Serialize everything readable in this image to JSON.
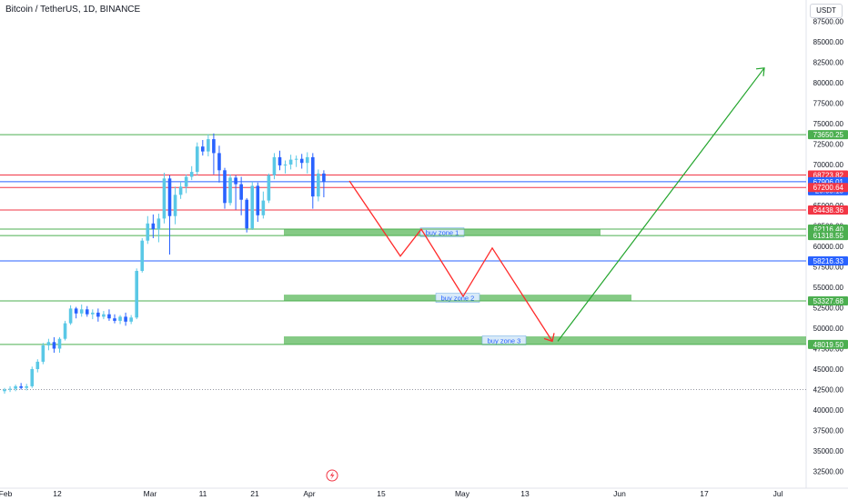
{
  "header": {
    "title": "Bitcoin / TetherUS, 1D, BINANCE"
  },
  "axis": {
    "unit": "USDT"
  },
  "chart_data": {
    "type": "candlestick",
    "symbol": "Bitcoin / TetherUS",
    "timeframe": "1D",
    "exchange": "BINANCE",
    "ylim": [
      31000,
      91000
    ],
    "y_ticks": [
      32500,
      35000,
      37500,
      40000,
      42500,
      45000,
      47500,
      50000,
      52500,
      55000,
      57500,
      60000,
      62500,
      65000,
      67500,
      70000,
      72500,
      75000,
      77500,
      80000,
      82500,
      85000,
      87500
    ],
    "x_ticks": [
      "Feb",
      "12",
      "Mar",
      "11",
      "21",
      "Apr",
      "15",
      "May",
      "13",
      "Jun",
      "17",
      "Jul"
    ],
    "candles": [
      [
        42300,
        42700,
        42000,
        42500
      ],
      [
        42500,
        42900,
        42200,
        42600
      ],
      [
        42600,
        43100,
        42300,
        42900
      ],
      [
        42900,
        43300,
        42500,
        42700
      ],
      [
        42700,
        43200,
        42400,
        42900
      ],
      [
        42900,
        45300,
        42700,
        45000
      ],
      [
        45000,
        46200,
        44600,
        45900
      ],
      [
        45900,
        48200,
        45600,
        47900
      ],
      [
        47900,
        48700,
        47300,
        48300
      ],
      [
        48300,
        48900,
        47000,
        47500
      ],
      [
        47500,
        48900,
        47000,
        48700
      ],
      [
        48700,
        50900,
        48500,
        50600
      ],
      [
        50600,
        52800,
        50400,
        52400
      ],
      [
        52400,
        52600,
        51200,
        51800
      ],
      [
        51800,
        52900,
        51400,
        52300
      ],
      [
        52300,
        52700,
        51400,
        51700
      ],
      [
        51700,
        52300,
        51100,
        51900
      ],
      [
        51900,
        52400,
        50800,
        51400
      ],
      [
        51400,
        52100,
        51100,
        51700
      ],
      [
        51700,
        52300,
        50900,
        51200
      ],
      [
        51200,
        51700,
        50600,
        50900
      ],
      [
        50900,
        51600,
        50500,
        51400
      ],
      [
        51400,
        51900,
        50300,
        50800
      ],
      [
        50800,
        51600,
        50500,
        51300
      ],
      [
        51300,
        57300,
        51100,
        57000
      ],
      [
        57000,
        61000,
        56800,
        60700
      ],
      [
        60700,
        63700,
        60300,
        62800
      ],
      [
        62800,
        63900,
        61000,
        62100
      ],
      [
        62100,
        64000,
        60500,
        63400
      ],
      [
        63400,
        69000,
        62800,
        68300
      ],
      [
        68300,
        68700,
        59000,
        63700
      ],
      [
        63700,
        67300,
        62700,
        66300
      ],
      [
        66300,
        67900,
        65800,
        67300
      ],
      [
        67300,
        68800,
        66500,
        68500
      ],
      [
        68500,
        69800,
        68100,
        69100
      ],
      [
        69100,
        72700,
        68700,
        72200
      ],
      [
        72200,
        73000,
        71100,
        71600
      ],
      [
        71600,
        73700,
        71000,
        73100
      ],
      [
        73100,
        73800,
        68800,
        71400
      ],
      [
        71400,
        72300,
        67800,
        69300
      ],
      [
        69300,
        69600,
        64600,
        65300
      ],
      [
        65300,
        68800,
        65000,
        68400
      ],
      [
        68400,
        68700,
        64500,
        67600
      ],
      [
        67600,
        68500,
        63800,
        65700
      ],
      [
        65700,
        65900,
        61700,
        62200
      ],
      [
        62200,
        67900,
        62000,
        67400
      ],
      [
        67400,
        67800,
        63000,
        63800
      ],
      [
        63800,
        66700,
        63400,
        65600
      ],
      [
        65600,
        68900,
        65300,
        68700
      ],
      [
        68700,
        71400,
        68200,
        70900
      ],
      [
        70900,
        71700,
        69300,
        69900
      ],
      [
        69900,
        70500,
        68900,
        70000
      ],
      [
        70000,
        71200,
        69400,
        70600
      ],
      [
        70600,
        71100,
        69700,
        70700
      ],
      [
        70700,
        71300,
        69500,
        70200
      ],
      [
        70200,
        71500,
        68900,
        70900
      ],
      [
        70900,
        71400,
        64600,
        66100
      ],
      [
        66100,
        69400,
        65500,
        68900
      ],
      [
        68900,
        69300,
        66000,
        67900
      ]
    ],
    "horizontal_levels": [
      {
        "value": 73650.25,
        "label": "73650.25",
        "color": "#4caf50"
      },
      {
        "value": 68723.82,
        "label": "68723.82",
        "color": "#f23645"
      },
      {
        "value": 67906.01,
        "label": "67906.01",
        "color": "#2962ff",
        "countdown": "20:05:15"
      },
      {
        "value": 67200.64,
        "label": "67200.64",
        "color": "#f23645"
      },
      {
        "value": 64438.36,
        "label": "64438.36",
        "color": "#f23645"
      },
      {
        "value": 62116.4,
        "label": "62116.40",
        "color": "#4caf50"
      },
      {
        "value": 61318.55,
        "label": "61318.55",
        "color": "#4caf50"
      },
      {
        "value": 58216.33,
        "label": "58216.33",
        "color": "#2962ff"
      },
      {
        "value": 53327.68,
        "label": "53327.68",
        "color": "#4caf50"
      },
      {
        "value": 48019.5,
        "label": "48019.50",
        "color": "#4caf50"
      }
    ],
    "dotted_level": 42500,
    "zones": [
      {
        "label": "buy zone 1",
        "top": 62116.4,
        "bottom": 61318.55
      },
      {
        "label": "buy zone 2",
        "top": 54100,
        "bottom": 53327.68
      },
      {
        "label": "buy zone 3",
        "top": 49000,
        "bottom": 48019.5
      }
    ],
    "projection_down": [
      68000,
      58800,
      62100,
      53900,
      59800,
      48400
    ],
    "projection_up": [
      48400,
      81800
    ],
    "colors": {
      "bull": "#5ac8e6",
      "bear": "#2962ff",
      "up_arrow": "#23a52d",
      "down_arrow": "#ff2a2a",
      "zone": "#5cb85c"
    }
  }
}
